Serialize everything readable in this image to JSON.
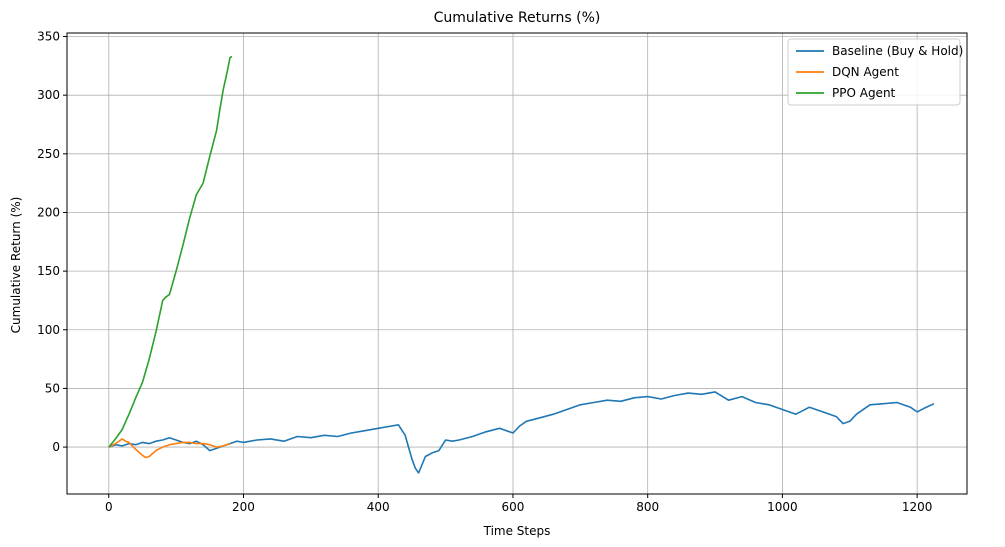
{
  "chart_data": {
    "type": "line",
    "title": "Cumulative Returns (%)",
    "xlabel": "Time Steps",
    "ylabel": "Cumulative Return (%)",
    "xlim": [
      -62,
      1274
    ],
    "ylim": [
      -40,
      353
    ],
    "xticks": [
      0,
      200,
      400,
      600,
      800,
      1000,
      1200
    ],
    "yticks": [
      0,
      50,
      100,
      150,
      200,
      250,
      300,
      350
    ],
    "grid": true,
    "legend": "top-right",
    "series": [
      {
        "name": "Baseline (Buy & Hold)",
        "color": "#1f77b4",
        "x": [
          0,
          10,
          20,
          30,
          40,
          50,
          60,
          70,
          80,
          90,
          100,
          110,
          120,
          130,
          140,
          150,
          160,
          170,
          180,
          190,
          200,
          220,
          240,
          260,
          280,
          300,
          320,
          340,
          360,
          380,
          400,
          420,
          430,
          440,
          445,
          450,
          455,
          460,
          470,
          480,
          490,
          500,
          510,
          520,
          540,
          560,
          580,
          600,
          610,
          620,
          640,
          660,
          680,
          700,
          720,
          740,
          760,
          780,
          800,
          820,
          840,
          860,
          880,
          900,
          920,
          940,
          960,
          980,
          1000,
          1020,
          1040,
          1060,
          1080,
          1090,
          1100,
          1110,
          1130,
          1150,
          1170,
          1190,
          1200,
          1210,
          1225
        ],
        "values": [
          0,
          2,
          1,
          3,
          2,
          4,
          3,
          5,
          6,
          8,
          6,
          4,
          3,
          5,
          2,
          -3,
          -1,
          1,
          3,
          5,
          4,
          6,
          7,
          5,
          9,
          8,
          10,
          9,
          12,
          14,
          16,
          18,
          19,
          10,
          0,
          -10,
          -18,
          -22,
          -8,
          -5,
          -3,
          6,
          5,
          6,
          9,
          13,
          16,
          12,
          18,
          22,
          25,
          28,
          32,
          36,
          38,
          40,
          39,
          42,
          43,
          41,
          44,
          46,
          45,
          47,
          40,
          43,
          38,
          36,
          32,
          28,
          34,
          30,
          26,
          20,
          22,
          28,
          36,
          37,
          38,
          34,
          30,
          33,
          37
        ]
      },
      {
        "name": "DQN Agent",
        "color": "#ff7f0e",
        "x": [
          0,
          10,
          20,
          25,
          30,
          40,
          50,
          55,
          60,
          70,
          80,
          90,
          100,
          110,
          120,
          130,
          140,
          150,
          160,
          170,
          180
        ],
        "values": [
          0,
          3,
          7,
          5,
          4,
          -2,
          -7,
          -9,
          -8,
          -3,
          0,
          2,
          3,
          4,
          4,
          3,
          3,
          2,
          0,
          1,
          3
        ]
      },
      {
        "name": "PPO Agent",
        "color": "#2ca02c",
        "x": [
          0,
          10,
          20,
          30,
          40,
          50,
          60,
          70,
          80,
          85,
          90,
          100,
          110,
          120,
          130,
          140,
          150,
          160,
          165,
          170,
          175,
          180,
          183
        ],
        "values": [
          0,
          7,
          15,
          28,
          42,
          55,
          75,
          98,
          125,
          128,
          130,
          150,
          172,
          195,
          215,
          225,
          248,
          270,
          288,
          305,
          318,
          332,
          333
        ]
      }
    ]
  }
}
